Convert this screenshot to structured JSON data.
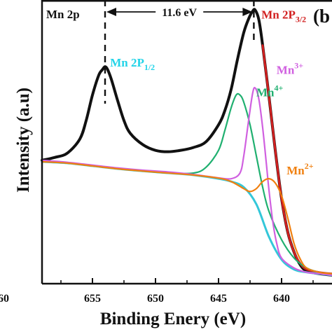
{
  "chart_data": {
    "type": "line",
    "panel_label": "(b",
    "region_label": "Mn 2p",
    "xlabel": "Binding Enery (eV)",
    "ylabel": "Intensity (a.u)",
    "x_reversed": true,
    "xlim": [
      659,
      636
    ],
    "ylim": [
      0,
      1.0
    ],
    "x_ticks": [
      655,
      650,
      645,
      640
    ],
    "partial_tick_label": "60",
    "separation": {
      "from": 654.0,
      "to": 642.2,
      "label": "11.6 eV"
    },
    "peak_labels": [
      {
        "text_main": "Mn 2P",
        "text_sub": "1/2",
        "color": "#22d4e8",
        "x": 653.6,
        "y": 0.765
      },
      {
        "text_main": "Mn 2P",
        "text_sub": "3/2",
        "color": "#d22020",
        "x": 641.6,
        "y": 0.935
      },
      {
        "text_main": "Mn",
        "text_sup": "4+",
        "color": "#20b070",
        "x": 642.0,
        "y": 0.66
      },
      {
        "text_main": "Mn",
        "text_sup": "3+",
        "color": "#d060e0",
        "x": 640.4,
        "y": 0.74
      },
      {
        "text_main": "Mn",
        "text_sup": "2+",
        "color": "#f08010",
        "x": 639.6,
        "y": 0.385
      }
    ],
    "series": [
      {
        "role": "raw",
        "color": "#111111",
        "x": [
          659,
          658,
          657,
          656,
          655.5,
          655,
          654.5,
          654.2,
          654,
          653.8,
          653.5,
          653,
          652.5,
          652,
          651,
          650,
          649,
          648,
          647,
          646,
          645,
          644.5,
          644,
          643.5,
          643,
          642.6,
          642.3,
          642.1,
          641.8,
          641.5,
          641,
          640.5,
          640,
          639.5,
          639,
          638.5,
          638,
          637,
          636
        ],
        "y": [
          0.435,
          0.445,
          0.46,
          0.51,
          0.575,
          0.665,
          0.735,
          0.755,
          0.765,
          0.755,
          0.72,
          0.645,
          0.575,
          0.53,
          0.49,
          0.47,
          0.465,
          0.47,
          0.48,
          0.5,
          0.56,
          0.61,
          0.685,
          0.79,
          0.885,
          0.935,
          0.96,
          0.965,
          0.93,
          0.84,
          0.66,
          0.47,
          0.3,
          0.18,
          0.11,
          0.065,
          0.045,
          0.035,
          0.03
        ]
      },
      {
        "role": "fit",
        "color": "#d22020",
        "x": [
          641.5,
          641,
          640.5,
          640,
          639.5,
          639,
          638.5,
          638,
          637,
          636
        ],
        "y": [
          0.84,
          0.66,
          0.47,
          0.3,
          0.18,
          0.11,
          0.07,
          0.05,
          0.04,
          0.035
        ]
      },
      {
        "role": "background",
        "color": "#33c7d9",
        "x": [
          659,
          657,
          655,
          653,
          651,
          649,
          647,
          645,
          644,
          643,
          642,
          641,
          640,
          639,
          638,
          637,
          636
        ],
        "y": [
          0.43,
          0.425,
          0.415,
          0.405,
          0.397,
          0.39,
          0.383,
          0.37,
          0.36,
          0.34,
          0.28,
          0.165,
          0.085,
          0.05,
          0.04,
          0.035,
          0.03
        ]
      },
      {
        "name": "Mn4+",
        "color": "#20b070",
        "x": [
          659,
          657,
          655,
          653,
          651,
          649,
          647,
          646,
          645,
          644.5,
          644,
          643.6,
          643.3,
          643,
          642.5,
          642,
          641.5,
          641,
          640,
          639,
          638,
          637,
          636
        ],
        "y": [
          0.43,
          0.425,
          0.415,
          0.405,
          0.397,
          0.39,
          0.39,
          0.41,
          0.47,
          0.54,
          0.62,
          0.665,
          0.665,
          0.64,
          0.56,
          0.45,
          0.34,
          0.255,
          0.155,
          0.09,
          0.055,
          0.04,
          0.035
        ]
      },
      {
        "name": "Mn3+",
        "color": "#d060e0",
        "x": [
          659,
          657,
          655,
          653,
          651,
          649,
          647,
          645,
          644,
          643.3,
          643,
          642.6,
          642.3,
          642.1,
          641.8,
          641.5,
          641.2,
          641,
          640.7,
          640.4,
          640,
          639,
          638,
          637,
          636
        ],
        "y": [
          0.435,
          0.428,
          0.418,
          0.408,
          0.4,
          0.394,
          0.385,
          0.373,
          0.37,
          0.39,
          0.45,
          0.58,
          0.67,
          0.69,
          0.65,
          0.55,
          0.42,
          0.33,
          0.22,
          0.145,
          0.09,
          0.055,
          0.04,
          0.035,
          0.03
        ]
      },
      {
        "name": "Mn2+",
        "color": "#f08010",
        "x": [
          659,
          657,
          655,
          653,
          651,
          649,
          647,
          645,
          644,
          643,
          642.5,
          642,
          641.5,
          641,
          640.5,
          640,
          639.5,
          639,
          638.5,
          638,
          637,
          636
        ],
        "y": [
          0.43,
          0.425,
          0.415,
          0.405,
          0.397,
          0.39,
          0.383,
          0.372,
          0.36,
          0.335,
          0.325,
          0.335,
          0.36,
          0.37,
          0.355,
          0.31,
          0.23,
          0.14,
          0.085,
          0.055,
          0.04,
          0.035
        ]
      }
    ]
  }
}
